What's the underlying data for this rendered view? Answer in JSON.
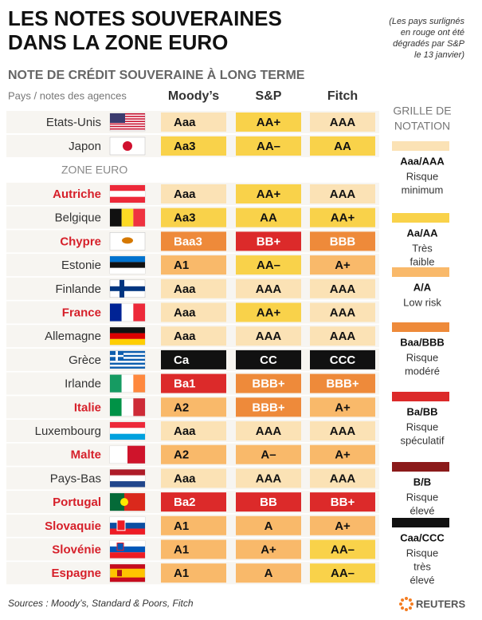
{
  "header": {
    "title_lines": [
      "LES NOTES SOUVERAINES",
      "DANS LA ZONE EURO"
    ],
    "note_lines": [
      "(Les pays surlignés",
      "en rouge ont été",
      "dégradés par S&P",
      "le 13 janvier)"
    ],
    "subtitle": "NOTE DE CRÉDIT SOUVERAINE À LONG TERME"
  },
  "table": {
    "row_header": "Pays / notes des agences",
    "agencies": [
      "Moody’s",
      "S&P",
      "Fitch"
    ],
    "zone_label": "ZONE EURO",
    "countries": [
      {
        "name": "Etats-Unis",
        "downgraded": false,
        "ratings": [
          {
            "text": "Aaa",
            "color": "#fbe2b5"
          },
          {
            "text": "AA+",
            "color": "#f9d24a"
          },
          {
            "text": "AAA",
            "color": "#fbe2b5"
          }
        ]
      },
      {
        "name": "Japon",
        "downgraded": false,
        "ratings": [
          {
            "text": "Aa3",
            "color": "#f9d24a"
          },
          {
            "text": "AA–",
            "color": "#f9d24a"
          },
          {
            "text": "AA",
            "color": "#f9d24a"
          }
        ]
      },
      {
        "name": "Autriche",
        "downgraded": true,
        "ratings": [
          {
            "text": "Aaa",
            "color": "#fbe2b5"
          },
          {
            "text": "AA+",
            "color": "#f9d24a"
          },
          {
            "text": "AAA",
            "color": "#fbe2b5"
          }
        ]
      },
      {
        "name": "Belgique",
        "downgraded": false,
        "ratings": [
          {
            "text": "Aa3",
            "color": "#f9d24a"
          },
          {
            "text": "AA",
            "color": "#f9d24a"
          },
          {
            "text": "AA+",
            "color": "#f9d24a"
          }
        ]
      },
      {
        "name": "Chypre",
        "downgraded": true,
        "ratings": [
          {
            "text": "Baa3",
            "color": "#ee8a3a"
          },
          {
            "text": "BB+",
            "color": "#dc2a2a"
          },
          {
            "text": "BBB",
            "color": "#ee8a3a"
          }
        ]
      },
      {
        "name": "Estonie",
        "downgraded": false,
        "ratings": [
          {
            "text": "A1",
            "color": "#f9b96a"
          },
          {
            "text": "AA–",
            "color": "#f9d24a"
          },
          {
            "text": "A+",
            "color": "#f9b96a"
          }
        ]
      },
      {
        "name": "Finlande",
        "downgraded": false,
        "ratings": [
          {
            "text": "Aaa",
            "color": "#fbe2b5"
          },
          {
            "text": "AAA",
            "color": "#fbe2b5"
          },
          {
            "text": "AAA",
            "color": "#fbe2b5"
          }
        ]
      },
      {
        "name": "France",
        "downgraded": true,
        "ratings": [
          {
            "text": "Aaa",
            "color": "#fbe2b5"
          },
          {
            "text": "AA+",
            "color": "#f9d24a"
          },
          {
            "text": "AAA",
            "color": "#fbe2b5"
          }
        ]
      },
      {
        "name": "Allemagne",
        "downgraded": false,
        "ratings": [
          {
            "text": "Aaa",
            "color": "#fbe2b5"
          },
          {
            "text": "AAA",
            "color": "#fbe2b5"
          },
          {
            "text": "AAA",
            "color": "#fbe2b5"
          }
        ]
      },
      {
        "name": "Grèce",
        "downgraded": false,
        "ratings": [
          {
            "text": "Ca",
            "color": "#111111"
          },
          {
            "text": "CC",
            "color": "#111111"
          },
          {
            "text": "CCC",
            "color": "#111111"
          }
        ]
      },
      {
        "name": "Irlande",
        "downgraded": false,
        "ratings": [
          {
            "text": "Ba1",
            "color": "#dc2a2a"
          },
          {
            "text": "BBB+",
            "color": "#ee8a3a"
          },
          {
            "text": "BBB+",
            "color": "#ee8a3a"
          }
        ]
      },
      {
        "name": "Italie",
        "downgraded": true,
        "ratings": [
          {
            "text": "A2",
            "color": "#f9b96a"
          },
          {
            "text": "BBB+",
            "color": "#ee8a3a"
          },
          {
            "text": "A+",
            "color": "#f9b96a"
          }
        ]
      },
      {
        "name": "Luxembourg",
        "downgraded": false,
        "ratings": [
          {
            "text": "Aaa",
            "color": "#fbe2b5"
          },
          {
            "text": "AAA",
            "color": "#fbe2b5"
          },
          {
            "text": "AAA",
            "color": "#fbe2b5"
          }
        ]
      },
      {
        "name": "Malte",
        "downgraded": true,
        "ratings": [
          {
            "text": "A2",
            "color": "#f9b96a"
          },
          {
            "text": "A–",
            "color": "#f9b96a"
          },
          {
            "text": "A+",
            "color": "#f9b96a"
          }
        ]
      },
      {
        "name": "Pays-Bas",
        "downgraded": false,
        "ratings": [
          {
            "text": "Aaa",
            "color": "#fbe2b5"
          },
          {
            "text": "AAA",
            "color": "#fbe2b5"
          },
          {
            "text": "AAA",
            "color": "#fbe2b5"
          }
        ]
      },
      {
        "name": "Portugal",
        "downgraded": true,
        "ratings": [
          {
            "text": "Ba2",
            "color": "#dc2a2a"
          },
          {
            "text": "BB",
            "color": "#dc2a2a"
          },
          {
            "text": "BB+",
            "color": "#dc2a2a"
          }
        ]
      },
      {
        "name": "Slovaquie",
        "downgraded": true,
        "ratings": [
          {
            "text": "A1",
            "color": "#f9b96a"
          },
          {
            "text": "A",
            "color": "#f9b96a"
          },
          {
            "text": "A+",
            "color": "#f9b96a"
          }
        ]
      },
      {
        "name": "Slovénie",
        "downgraded": true,
        "ratings": [
          {
            "text": "A1",
            "color": "#f9b96a"
          },
          {
            "text": "A+",
            "color": "#f9b96a"
          },
          {
            "text": "AA–",
            "color": "#f9d24a"
          }
        ]
      },
      {
        "name": "Espagne",
        "downgraded": true,
        "ratings": [
          {
            "text": "A1",
            "color": "#f9b96a"
          },
          {
            "text": "A",
            "color": "#f9b96a"
          },
          {
            "text": "AA–",
            "color": "#f9d24a"
          }
        ]
      }
    ]
  },
  "legend": {
    "title_lines": [
      "GRILLE DE",
      "NOTATION"
    ],
    "items": [
      {
        "label": "Aaa/AAA",
        "color": "#fbe2b5",
        "desc_lines": [
          "Risque",
          "minimum"
        ]
      },
      {
        "label": "Aa/AA",
        "color": "#f9d24a",
        "desc_lines": [
          "Très",
          "faible"
        ]
      },
      {
        "label": "A/A",
        "color": "#f9b96a",
        "desc_lines": [
          "Low risk"
        ]
      },
      {
        "label": "Baa/BBB",
        "color": "#ee8a3a",
        "desc_lines": [
          "Risque",
          "modéré"
        ]
      },
      {
        "label": "Ba/BB",
        "color": "#dc2a2a",
        "desc_lines": [
          "Risque",
          "spéculatif"
        ]
      },
      {
        "label": "B/B",
        "color": "#8b1a1a",
        "desc_lines": [
          "Risque",
          "élevé"
        ]
      },
      {
        "label": "Caa/CCC",
        "color": "#111111",
        "desc_lines": [
          "Risque",
          "très",
          "élevé"
        ]
      }
    ]
  },
  "footer": {
    "sources": "Sources : Moody’s, Standard & Poors, Fitch",
    "logo": "REUTERS"
  }
}
